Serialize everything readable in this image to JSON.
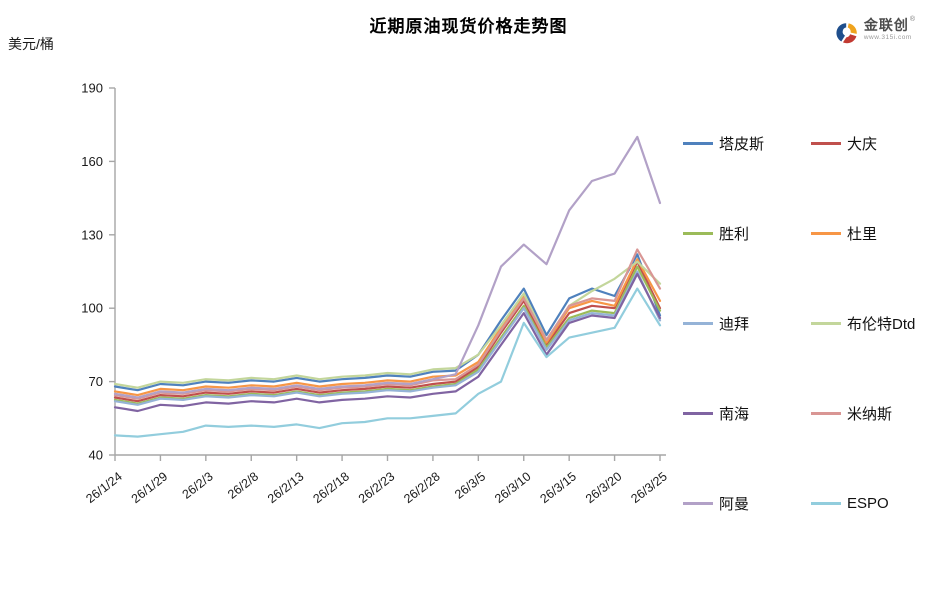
{
  "brand": {
    "name": "金联创",
    "reg": "®",
    "url": "www.315i.com",
    "mark_colors": {
      "blue": "#1F4E8C",
      "red": "#C23A32",
      "yellow": "#EFA31D"
    }
  },
  "chart_data": {
    "type": "line",
    "title": "近期原油现货价格走势图",
    "ylabel": "美元/桶",
    "xlabel": "",
    "ylim": [
      40,
      190
    ],
    "yticks": [
      40,
      70,
      100,
      130,
      160,
      190
    ],
    "grid": false,
    "legend_position": "right",
    "axis_color": "#A6A6A6",
    "x_tick_labels": [
      "26/1/24",
      "26/1/29",
      "26/2/3",
      "26/2/8",
      "26/2/13",
      "26/2/18",
      "26/2/23",
      "26/2/28",
      "26/3/5",
      "26/3/10",
      "26/3/15",
      "26/3/20",
      "26/3/25"
    ],
    "tick_every": 2,
    "x": [
      "26/1/24",
      "26/1/26",
      "26/1/29",
      "26/1/31",
      "26/2/3",
      "26/2/5",
      "26/2/8",
      "26/2/10",
      "26/2/13",
      "26/2/15",
      "26/2/18",
      "26/2/20",
      "26/2/23",
      "26/2/25",
      "26/2/28",
      "26/3/2",
      "26/3/5",
      "26/3/7",
      "26/3/10",
      "26/3/12",
      "26/3/15",
      "26/3/17",
      "26/3/20",
      "26/3/22",
      "26/3/25"
    ],
    "series": [
      {
        "name": "塔皮斯",
        "color": "#4F81BD",
        "values": [
          68,
          66.5,
          69,
          68.5,
          70,
          69.5,
          70.5,
          70,
          71.5,
          70,
          71,
          71.5,
          72.5,
          72,
          74,
          74.5,
          81,
          95,
          108,
          89,
          104,
          108,
          105,
          122,
          97
        ]
      },
      {
        "name": "大庆",
        "color": "#C0504D",
        "values": [
          63.5,
          62,
          64.5,
          64,
          65.5,
          65,
          66,
          65.5,
          67,
          65.5,
          66.5,
          67,
          68,
          67.5,
          69,
          70,
          76,
          90,
          103,
          85,
          98,
          101,
          100,
          119,
          100
        ]
      },
      {
        "name": "胜利",
        "color": "#9BBB59",
        "values": [
          62.5,
          61,
          63.5,
          63,
          64.5,
          64,
          65,
          64.5,
          66,
          64.5,
          65.5,
          66,
          67,
          66.5,
          68,
          69,
          75,
          88,
          101,
          84,
          96,
          99,
          98,
          117,
          99
        ]
      },
      {
        "name": "杜里",
        "color": "#F79646",
        "values": [
          66,
          64.5,
          67,
          66.5,
          68,
          67.5,
          68.5,
          68,
          69.5,
          68,
          69,
          69.5,
          70.5,
          70,
          72,
          72.5,
          78,
          92,
          105,
          86,
          100,
          103,
          101,
          120,
          103
        ]
      },
      {
        "name": "迪拜",
        "color": "#95B3D7",
        "values": [
          62,
          60.5,
          63,
          62.5,
          64,
          63.5,
          64.5,
          64,
          65.5,
          64,
          65,
          65.5,
          66.5,
          66,
          67.5,
          68.5,
          74,
          87,
          100,
          83,
          95,
          98,
          97,
          115,
          95
        ]
      },
      {
        "name": "布伦特Dtd",
        "color": "#C3D69B",
        "values": [
          69,
          67.5,
          70,
          69.5,
          71,
          70.5,
          71.5,
          71,
          72.5,
          71,
          72,
          72.5,
          73.5,
          73,
          75,
          75.5,
          81,
          93,
          106,
          87,
          101,
          107,
          112,
          119,
          110
        ]
      },
      {
        "name": "南海",
        "color": "#8064A2",
        "values": [
          59.5,
          58,
          60.5,
          60,
          61.5,
          61,
          62,
          61.5,
          63,
          61.5,
          62.5,
          63,
          64,
          63.5,
          65,
          66,
          72,
          85,
          98,
          81,
          94,
          97,
          96,
          114,
          96
        ]
      },
      {
        "name": "米纳斯",
        "color": "#D99694",
        "values": [
          64.5,
          63,
          65.5,
          65,
          66.5,
          66,
          67,
          66.5,
          68,
          66.5,
          67.5,
          68,
          69,
          68.5,
          70.5,
          71,
          77,
          91,
          104,
          87,
          101,
          104,
          103,
          124,
          108
        ]
      },
      {
        "name": "阿曼",
        "color": "#B2A1C7",
        "values": [
          65,
          63.5,
          66,
          65.5,
          67,
          66.5,
          67.5,
          67,
          68.5,
          67,
          68,
          68.5,
          69.5,
          69,
          71,
          73,
          93,
          117,
          126,
          118,
          140,
          152,
          155,
          170,
          143
        ]
      },
      {
        "name": "ESPO",
        "color": "#92CDDD",
        "values": [
          48,
          47.5,
          48.5,
          49.5,
          52,
          51.5,
          52,
          51.5,
          52.5,
          51,
          53,
          53.5,
          55,
          55,
          56,
          57,
          65,
          70,
          94,
          80,
          88,
          90,
          92,
          108,
          93
        ]
      }
    ]
  }
}
